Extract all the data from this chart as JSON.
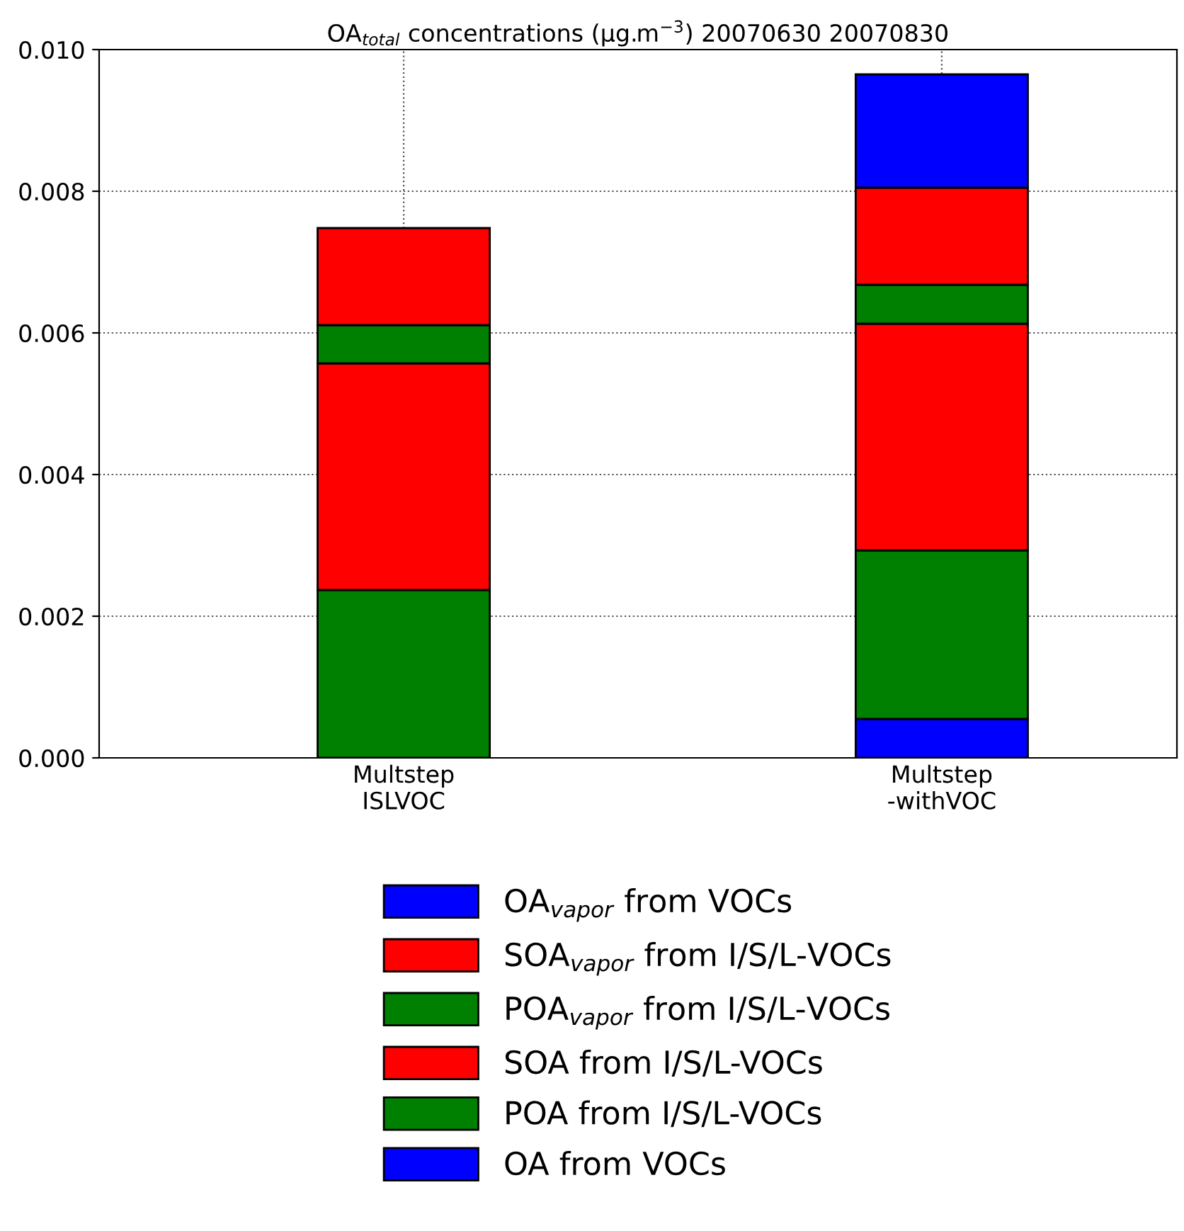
{
  "chart_data": {
    "type": "bar",
    "stacked": true,
    "title": "OA$_{total}$ concentrations (μg.m$^{−3}$) 20070630 20070830",
    "categories": [
      "Multstep\nISLVOC",
      "Multstep\n-withVOC"
    ],
    "series": [
      {
        "name": "OA from VOCs",
        "color": "#0000ff",
        "values": [
          null,
          0.00055
        ]
      },
      {
        "name": "POA from I/S/L-VOCs",
        "color": "#008000",
        "values": [
          0.00237,
          0.00238
        ]
      },
      {
        "name": "SOA from I/S/L-VOCs",
        "color": "#ff0000",
        "values": [
          0.0032,
          0.0032
        ]
      },
      {
        "name": "POA$_{vapor}$ from I/S/L-VOCs",
        "color": "#008000",
        "values": [
          0.00054,
          0.00055
        ]
      },
      {
        "name": "SOA$_{vapor}$ from I/S/L-VOCs",
        "color": "#ff0000",
        "values": [
          0.00137,
          0.00137
        ]
      },
      {
        "name": "OA$_{vapor}$ from VOCs",
        "color": "#0000ff",
        "values": [
          null,
          0.0016
        ]
      }
    ],
    "ylim": [
      0,
      0.01
    ],
    "yticks": [
      {
        "value": 0,
        "label": "0.000"
      },
      {
        "value": 0.002,
        "label": "0.002"
      },
      {
        "value": 0.004,
        "label": "0.004"
      },
      {
        "value": 0.006,
        "label": "0.006"
      },
      {
        "value": 0.008,
        "label": "0.008"
      },
      {
        "value": 0.01,
        "label": "0.010"
      }
    ],
    "grid": true,
    "legend": "bottom"
  }
}
